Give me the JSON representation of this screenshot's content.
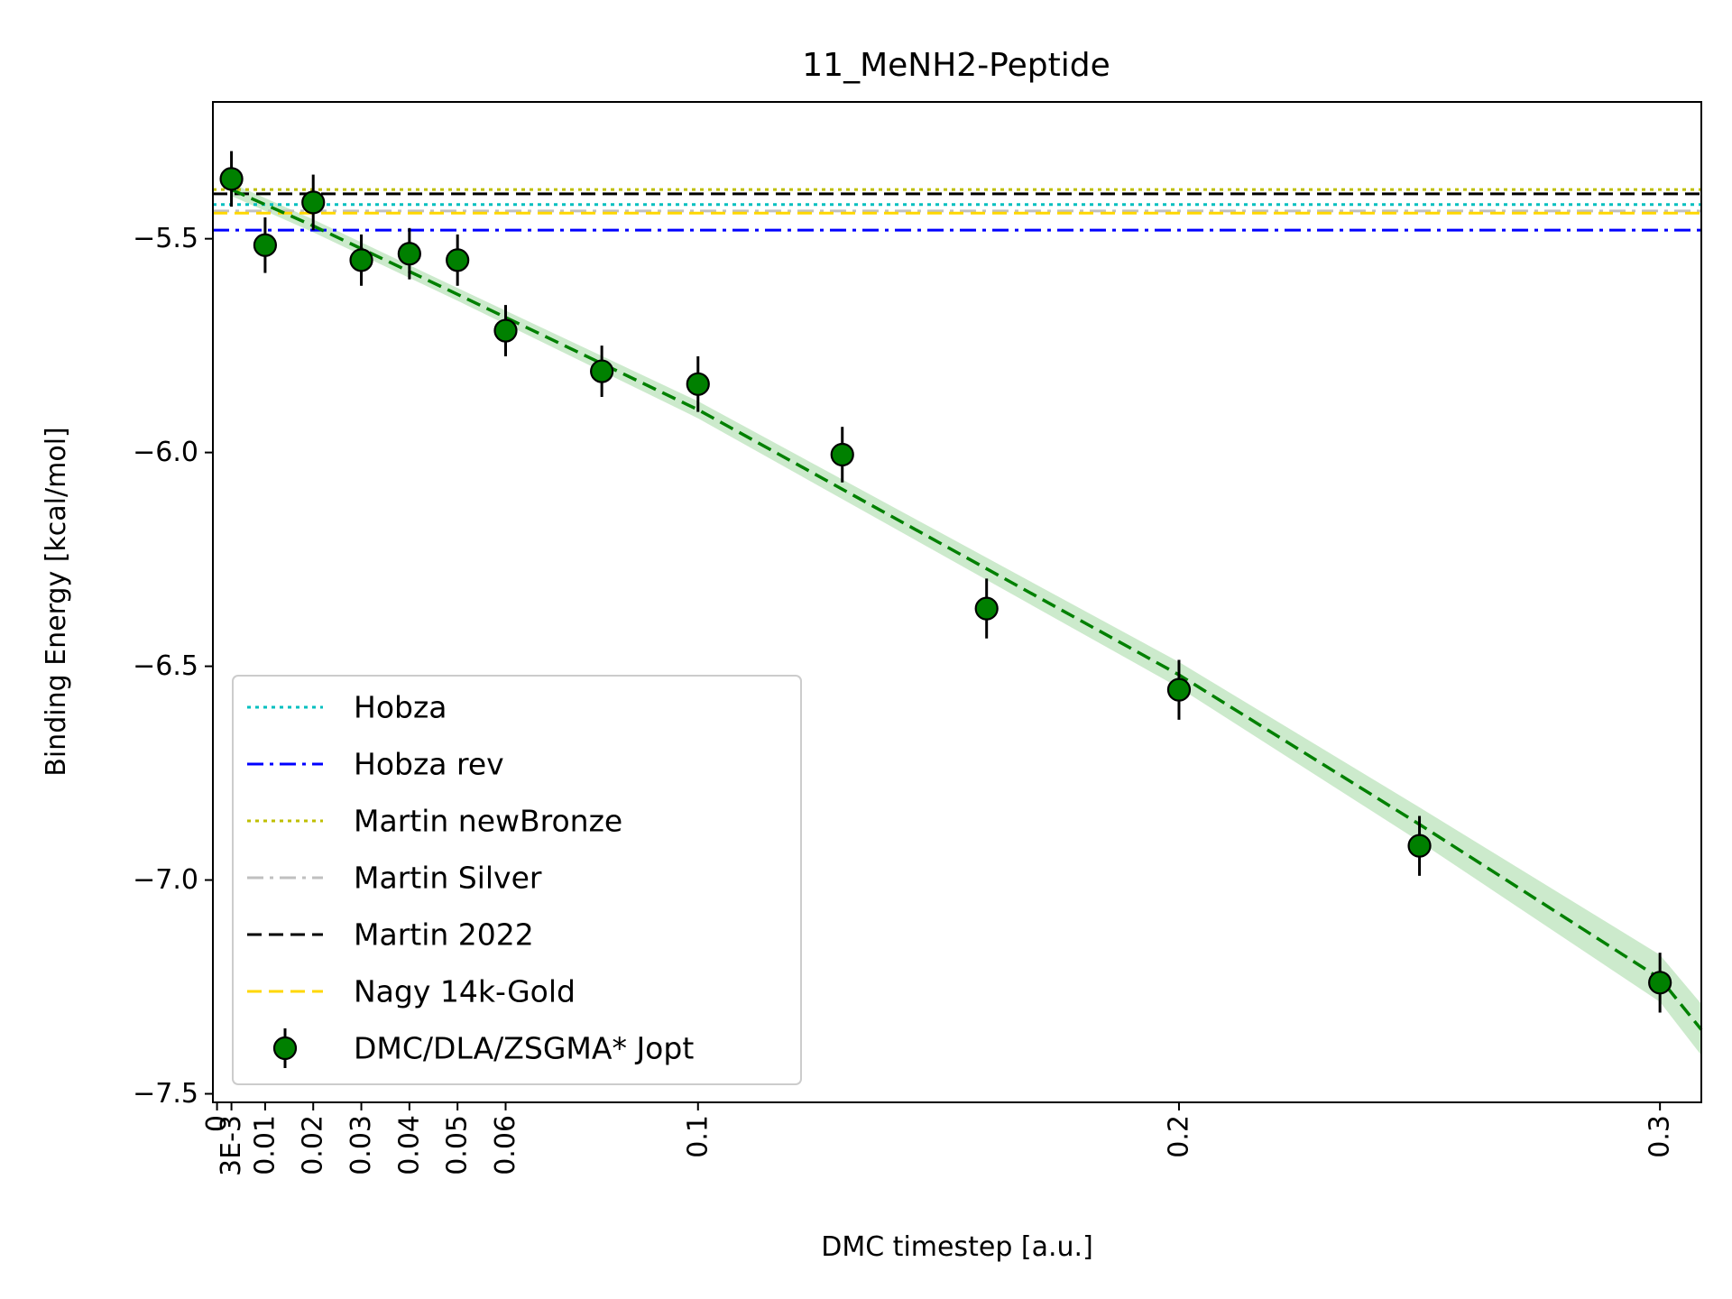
{
  "chart_data": {
    "type": "scatter",
    "title": "11_MeNH2-Peptide",
    "xlabel": "DMC timestep [a.u.]",
    "ylabel": "Binding Energy [kcal/mol]",
    "xlim": [
      -0.00086,
      0.3086
    ],
    "ylim": [
      -7.52,
      -5.18
    ],
    "grid": false,
    "legend_position": "lower left",
    "x_ticks": [
      {
        "value": 0,
        "label": "0"
      },
      {
        "value": 0.003,
        "label": "3E-3"
      },
      {
        "value": 0.01,
        "label": "0.01"
      },
      {
        "value": 0.02,
        "label": "0.02"
      },
      {
        "value": 0.03,
        "label": "0.03"
      },
      {
        "value": 0.04,
        "label": "0.04"
      },
      {
        "value": 0.05,
        "label": "0.05"
      },
      {
        "value": 0.06,
        "label": "0.06"
      },
      {
        "value": 0.1,
        "label": "0.1"
      },
      {
        "value": 0.2,
        "label": "0.2"
      },
      {
        "value": 0.3,
        "label": "0.3"
      }
    ],
    "y_ticks": [
      {
        "value": -5.5,
        "label": "−5.5"
      },
      {
        "value": -6.0,
        "label": "−6.0"
      },
      {
        "value": -6.5,
        "label": "−6.5"
      },
      {
        "value": -7.0,
        "label": "−7.0"
      },
      {
        "value": -7.5,
        "label": "−7.5"
      }
    ],
    "reference_lines": [
      {
        "name": "Hobza",
        "value": -5.42,
        "color": "#00bfbf",
        "style": "dotted"
      },
      {
        "name": "Hobza rev",
        "value": -5.48,
        "color": "#0000ff",
        "style": "dashdot"
      },
      {
        "name": "Martin newBronze",
        "value": -5.385,
        "color": "#bfbf00",
        "style": "dotted"
      },
      {
        "name": "Martin Silver",
        "value": -5.435,
        "color": "#c0c0c0",
        "style": "dashdot"
      },
      {
        "name": "Martin 2022",
        "value": -5.395,
        "color": "#000000",
        "style": "dashed"
      },
      {
        "name": "Nagy 14k-Gold",
        "value": -5.44,
        "color": "#ffd700",
        "style": "dashed"
      }
    ],
    "series": [
      {
        "name": "DMC/DLA/ZSGMA* Jopt",
        "color": "#008000",
        "x": [
          0.003,
          0.01,
          0.02,
          0.03,
          0.04,
          0.05,
          0.06,
          0.08,
          0.1,
          0.13,
          0.16,
          0.2,
          0.25,
          0.3
        ],
        "y": [
          -5.36,
          -5.515,
          -5.415,
          -5.55,
          -5.535,
          -5.55,
          -5.715,
          -5.81,
          -5.84,
          -6.005,
          -6.365,
          -6.555,
          -6.92,
          -7.24
        ],
        "yerr": [
          0.065,
          0.065,
          0.065,
          0.06,
          0.06,
          0.06,
          0.06,
          0.06,
          0.065,
          0.065,
          0.07,
          0.07,
          0.07,
          0.07
        ]
      }
    ],
    "fit": {
      "color": "#008000",
      "band_color": "#8fd18f",
      "x": [
        0.003,
        0.02,
        0.05,
        0.1,
        0.15,
        0.2,
        0.25,
        0.3,
        0.3086
      ],
      "y": [
        -5.385,
        -5.47,
        -5.63,
        -5.9,
        -6.21,
        -6.52,
        -6.87,
        -7.23,
        -7.35
      ],
      "band_halfwidth": [
        0.015,
        0.015,
        0.015,
        0.02,
        0.025,
        0.03,
        0.04,
        0.055,
        0.06
      ]
    }
  }
}
